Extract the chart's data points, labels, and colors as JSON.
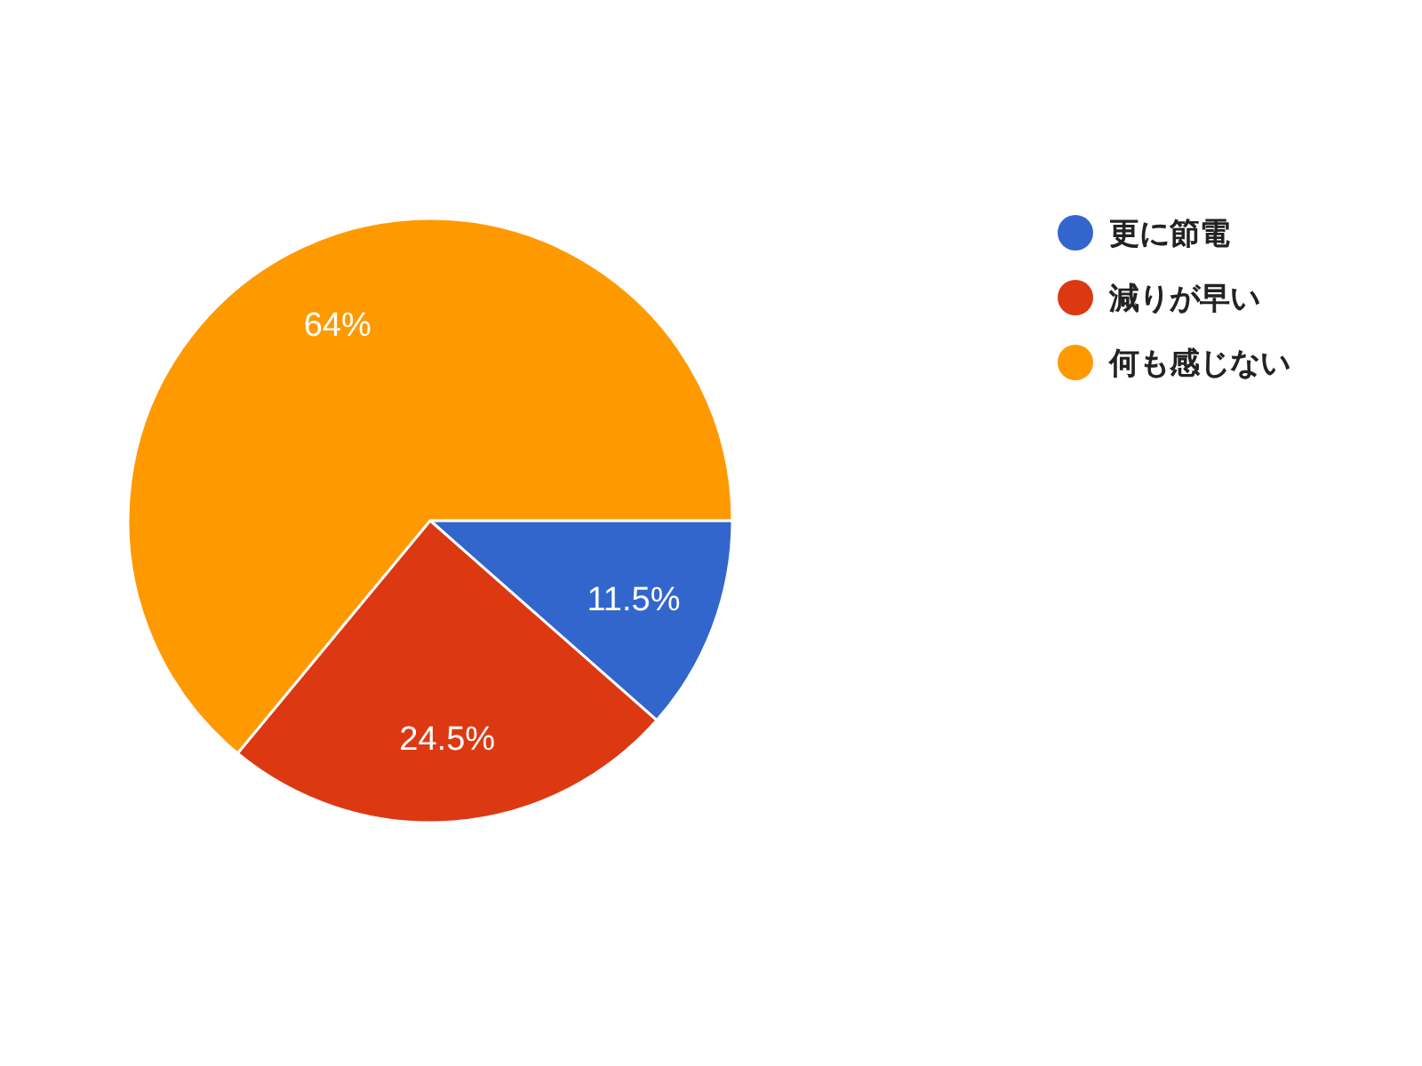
{
  "chart_data": {
    "type": "pie",
    "categories": [
      "更に節電",
      "減りが早い",
      "何も感じない"
    ],
    "values": [
      11.5,
      24.5,
      64
    ],
    "colors": [
      "#3366cc",
      "#dc3912",
      "#ff9900"
    ],
    "value_labels": [
      "11.5%",
      "24.5%",
      "64%"
    ],
    "legend": "right"
  }
}
